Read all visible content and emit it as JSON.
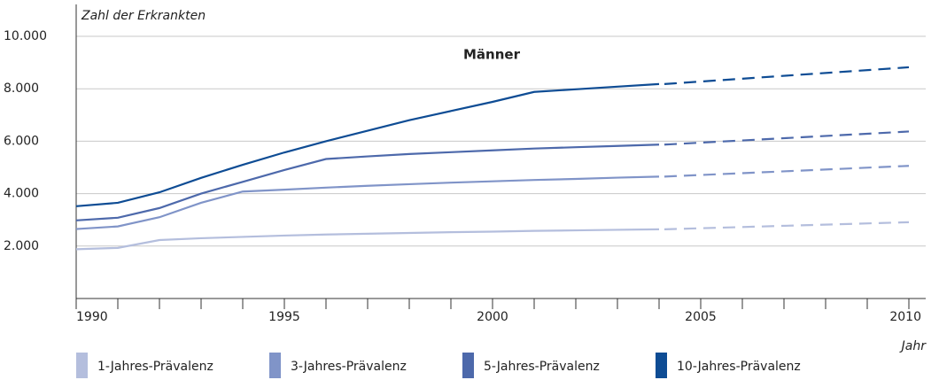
{
  "chart_data": {
    "type": "line",
    "title": "Männer",
    "y_label": "Zahl der Erkrankten",
    "x_label": "Jahr",
    "x": [
      1990,
      1991,
      1992,
      1993,
      1994,
      1995,
      1996,
      1997,
      1998,
      1999,
      2000,
      2001,
      2002,
      2003,
      2004,
      2010
    ],
    "series": [
      {
        "name": "1-Jahres-Prävalenz",
        "color": "#b4bedd",
        "values": [
          1880,
          1930,
          2230,
          2300,
          2350,
          2400,
          2440,
          2470,
          2500,
          2530,
          2550,
          2580,
          2600,
          2620,
          2640,
          2910
        ]
      },
      {
        "name": "3-Jahres-Prävalenz",
        "color": "#8094c8",
        "values": [
          2650,
          2750,
          3100,
          3650,
          4080,
          4150,
          4230,
          4300,
          4360,
          4420,
          4470,
          4520,
          4560,
          4610,
          4650,
          5060
        ]
      },
      {
        "name": "5-Jahres-Prävalenz",
        "color": "#4d69ab",
        "values": [
          2980,
          3080,
          3450,
          4000,
          4450,
          4900,
          5320,
          5420,
          5510,
          5580,
          5650,
          5720,
          5770,
          5820,
          5870,
          6370
        ]
      },
      {
        "name": "10-Jahres-Prävalenz",
        "color": "#0e4c94",
        "values": [
          3520,
          3650,
          4050,
          4600,
          5100,
          5570,
          6000,
          6400,
          6800,
          7150,
          7500,
          7880,
          7980,
          8080,
          8180,
          8820
        ]
      }
    ],
    "dashed_from": 2004,
    "xlim": [
      1990,
      2010
    ],
    "xticks": [
      1990,
      1995,
      2000,
      2005,
      2010
    ],
    "ylim": [
      0,
      10000
    ],
    "yticks": [
      {
        "value": 2000,
        "label": "2.000"
      },
      {
        "value": 4000,
        "label": "4.000"
      },
      {
        "value": 6000,
        "label": "6.000"
      },
      {
        "value": 8000,
        "label": "8.000"
      },
      {
        "value": 10000,
        "label": "10.000"
      }
    ],
    "grid": true
  }
}
